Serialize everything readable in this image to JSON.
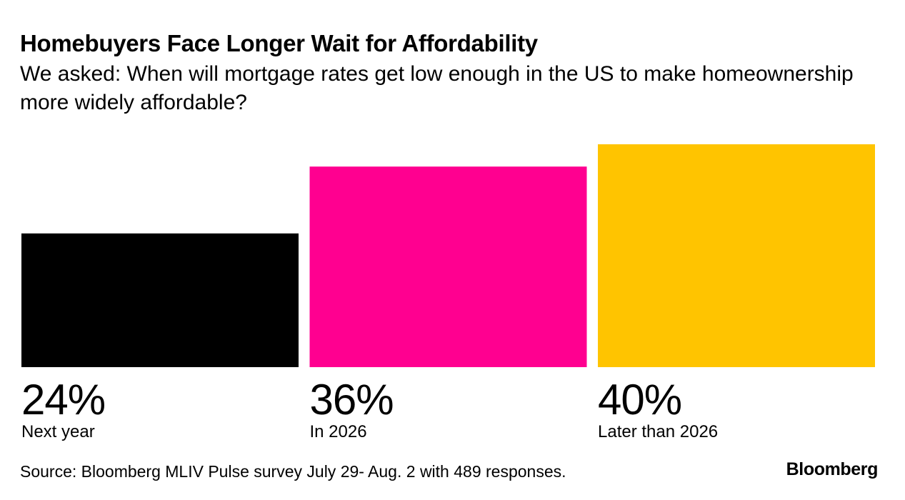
{
  "header": {
    "title": "Homebuyers Face Longer Wait for Affordability",
    "subtitle": "We asked: When will mortgage rates get low enough in the US to make homeownership more widely affordable?"
  },
  "chart_data": {
    "type": "bar",
    "categories": [
      "Next year",
      "In 2026",
      "Later than 2026"
    ],
    "values": [
      24,
      36,
      40
    ],
    "value_labels": [
      "24%",
      "36%",
      "40%"
    ],
    "unit": "%",
    "colors": [
      "#000000",
      "#ff0090",
      "#ffc400"
    ],
    "ylim": [
      0,
      40
    ],
    "grid": false,
    "xlabel": "",
    "ylabel": ""
  },
  "footer": {
    "source": "Source: Bloomberg MLIV Pulse survey July 29- Aug. 2 with 489 responses.",
    "brand": "Bloomberg"
  }
}
